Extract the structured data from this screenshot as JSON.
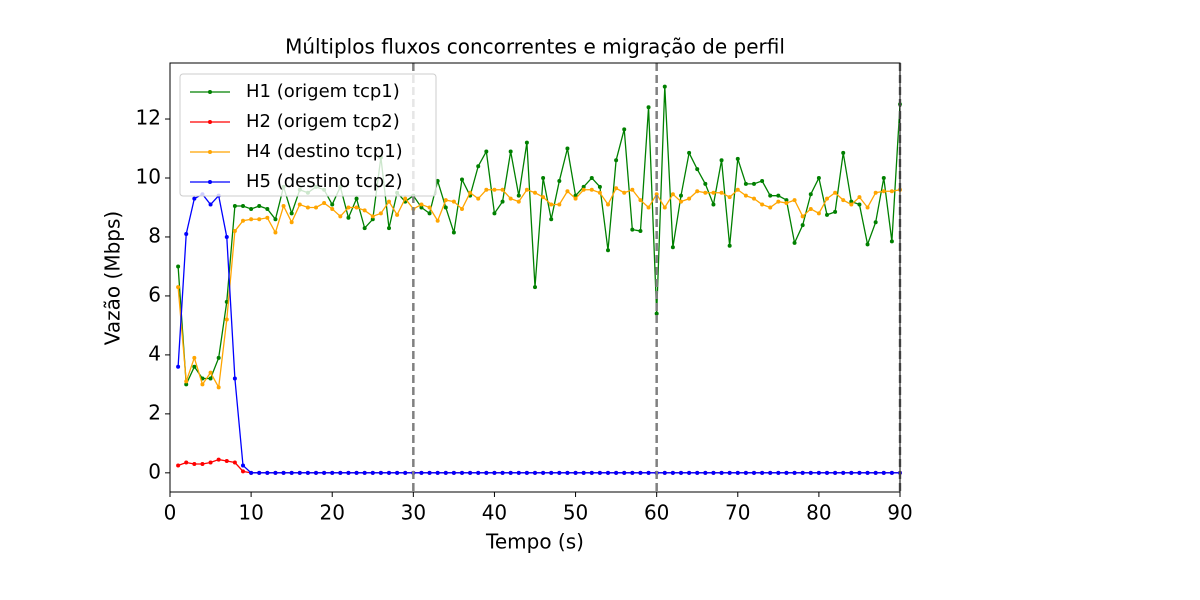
{
  "chart_data": {
    "type": "line",
    "title": "Múltiplos fluxos concorrentes e migração de perfil",
    "xlabel": "Tempo (s)",
    "ylabel": "Vazão (Mbps)",
    "xlim": [
      0,
      90
    ],
    "ylim": [
      -0.65,
      13.9
    ],
    "xticks": [
      0,
      10,
      20,
      30,
      40,
      50,
      60,
      70,
      80,
      90
    ],
    "yticks": [
      0,
      2,
      4,
      6,
      8,
      10,
      12
    ],
    "vlines": [
      30,
      60,
      90
    ],
    "vline_color": "#808080",
    "legend": "upper left",
    "x": [
      1,
      2,
      3,
      4,
      5,
      6,
      7,
      8,
      9,
      10,
      11,
      12,
      13,
      14,
      15,
      16,
      17,
      18,
      19,
      20,
      21,
      22,
      23,
      24,
      25,
      26,
      27,
      28,
      29,
      30,
      31,
      32,
      33,
      34,
      35,
      36,
      37,
      38,
      39,
      40,
      41,
      42,
      43,
      44,
      45,
      46,
      47,
      48,
      49,
      50,
      51,
      52,
      53,
      54,
      55,
      56,
      57,
      58,
      59,
      60,
      61,
      62,
      63,
      64,
      65,
      66,
      67,
      68,
      69,
      70,
      71,
      72,
      73,
      74,
      75,
      76,
      77,
      78,
      79,
      80,
      81,
      82,
      83,
      84,
      85,
      86,
      87,
      88,
      89,
      90
    ],
    "series": [
      {
        "name": "H1 (origem tcp1)",
        "color": "#008000",
        "values": [
          7.0,
          3.0,
          3.6,
          3.2,
          3.2,
          3.9,
          5.8,
          9.05,
          9.05,
          8.95,
          9.05,
          8.95,
          8.6,
          9.7,
          8.8,
          9.6,
          9.5,
          9.7,
          9.6,
          9.1,
          9.7,
          8.65,
          9.3,
          8.3,
          8.6,
          10.7,
          8.3,
          9.5,
          9.2,
          9.4,
          9.0,
          8.8,
          9.9,
          9.0,
          8.15,
          9.95,
          9.4,
          10.4,
          10.9,
          8.8,
          9.2,
          10.9,
          9.4,
          11.2,
          6.3,
          10.0,
          8.6,
          9.9,
          11.0,
          9.4,
          9.7,
          10.0,
          9.7,
          7.55,
          10.6,
          11.65,
          8.25,
          8.2,
          12.4,
          5.4,
          13.1,
          7.65,
          9.4,
          10.85,
          10.3,
          9.8,
          9.1,
          10.6,
          7.7,
          10.65,
          9.8,
          9.8,
          9.9,
          9.4,
          9.4,
          9.25,
          7.8,
          8.4,
          9.45,
          10.0,
          8.75,
          8.85,
          10.85,
          9.2,
          9.1,
          7.75,
          8.5,
          10.0,
          7.85,
          12.5
        ]
      },
      {
        "name": "H2 (origem tcp2)",
        "color": "#ff0000",
        "values": [
          0.25,
          0.35,
          0.3,
          0.3,
          0.35,
          0.45,
          0.4,
          0.35,
          0.05,
          0,
          0,
          0,
          0,
          0,
          0,
          0,
          0,
          0,
          0,
          0,
          0,
          0,
          0,
          0,
          0,
          0,
          0,
          0,
          0,
          0,
          0,
          0,
          0,
          0,
          0,
          0,
          0,
          0,
          0,
          0,
          0,
          0,
          0,
          0,
          0,
          0,
          0,
          0,
          0,
          0,
          0,
          0,
          0,
          0,
          0,
          0,
          0,
          0,
          0,
          0,
          0,
          0,
          0,
          0,
          0,
          0,
          0,
          0,
          0,
          0,
          0,
          0,
          0,
          0,
          0,
          0,
          0,
          0,
          0,
          0,
          0,
          0,
          0,
          0,
          0,
          0,
          0,
          0,
          0,
          0
        ]
      },
      {
        "name": "H4 (destino tcp1)",
        "color": "#ffa500",
        "values": [
          6.3,
          3.1,
          3.9,
          3.0,
          3.4,
          2.9,
          5.2,
          8.2,
          8.55,
          8.6,
          8.6,
          8.65,
          8.15,
          9.05,
          8.5,
          9.1,
          9.0,
          9.0,
          9.15,
          8.95,
          8.7,
          9.0,
          9.0,
          8.9,
          8.7,
          8.8,
          9.2,
          8.75,
          9.3,
          8.95,
          9.1,
          9.0,
          8.55,
          9.25,
          9.2,
          8.95,
          9.5,
          9.3,
          9.6,
          9.6,
          9.6,
          9.3,
          9.2,
          9.6,
          9.5,
          9.35,
          9.1,
          9.1,
          9.55,
          9.3,
          9.6,
          9.6,
          9.5,
          9.1,
          9.65,
          9.5,
          9.6,
          9.25,
          9.0,
          9.45,
          9.0,
          9.45,
          9.2,
          9.3,
          9.55,
          9.5,
          9.5,
          9.5,
          9.35,
          9.6,
          9.4,
          9.3,
          9.1,
          9.0,
          9.2,
          9.15,
          9.25,
          8.7,
          8.95,
          8.8,
          9.3,
          9.5,
          9.25,
          9.1,
          9.35,
          9.0,
          9.5,
          9.55,
          9.55,
          9.6
        ]
      },
      {
        "name": "H5 (destino tcp2)",
        "color": "#0000ff",
        "values": [
          3.6,
          8.1,
          9.3,
          9.45,
          9.1,
          9.4,
          8.0,
          3.2,
          0.25,
          0,
          0,
          0,
          0,
          0,
          0,
          0,
          0,
          0,
          0,
          0,
          0,
          0,
          0,
          0,
          0,
          0,
          0,
          0,
          0,
          0,
          0,
          0,
          0,
          0,
          0,
          0,
          0,
          0,
          0,
          0,
          0,
          0,
          0,
          0,
          0,
          0,
          0,
          0,
          0,
          0,
          0,
          0,
          0,
          0,
          0,
          0,
          0,
          0,
          0,
          0,
          0,
          0,
          0,
          0,
          0,
          0,
          0,
          0,
          0,
          0,
          0,
          0,
          0,
          0,
          0,
          0,
          0,
          0,
          0,
          0,
          0,
          0,
          0,
          0,
          0,
          0,
          0,
          0,
          0,
          0
        ]
      }
    ]
  }
}
